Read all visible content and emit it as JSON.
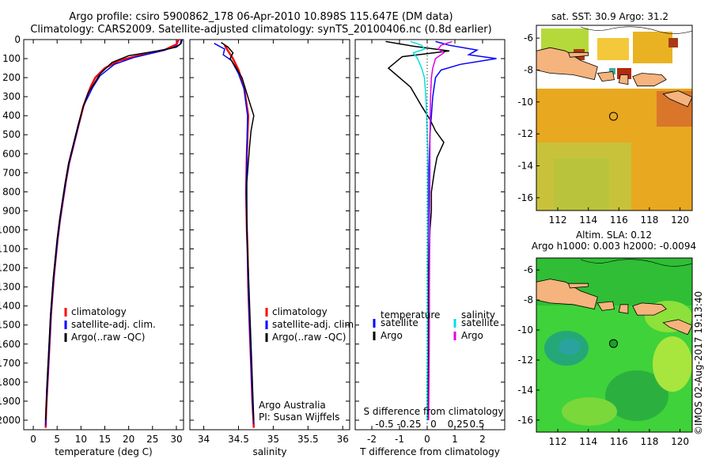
{
  "header": {
    "line1": "Argo profile: csiro 5900862_178 06-Apr-2010 10.898S 115.647E (DM data)",
    "line2": "Climatology: CARS2009. Satellite-adjusted climatology: synTS_20100406.nc (0.8d earlier)"
  },
  "colors": {
    "climatology": "#ff0000",
    "satellite": "#0000ff",
    "argo": "#000000",
    "sat_salinity": "#00e0e0",
    "argo_salinity": "#e000e0"
  },
  "chart_data": [
    {
      "type": "line",
      "id": "temperature",
      "xlabel": "temperature (deg C)",
      "ylabel": "",
      "xlim": [
        -2,
        31.5
      ],
      "ylim": [
        2050,
        0
      ],
      "xticks": [
        "0",
        "5",
        "10",
        "15",
        "20",
        "25",
        "30"
      ],
      "yticks": [
        "0",
        "100",
        "200",
        "300",
        "400",
        "500",
        "600",
        "700",
        "800",
        "900",
        "1000",
        "1100",
        "1200",
        "1300",
        "1400",
        "1500",
        "1600",
        "1700",
        "1800",
        "1900",
        "2000"
      ],
      "legend": [
        "climatology",
        "satellite-adj. clim.",
        "Argo(..raw -QC)"
      ],
      "series": [
        {
          "name": "climatology",
          "points": [
            [
              30.5,
              0
            ],
            [
              30,
              25
            ],
            [
              27.5,
              55
            ],
            [
              22,
              85
            ],
            [
              18,
              110
            ],
            [
              15,
              150
            ],
            [
              13,
              200
            ],
            [
              12,
              250
            ],
            [
              10.5,
              350
            ],
            [
              9.5,
              450
            ],
            [
              8.5,
              550
            ],
            [
              7.5,
              650
            ],
            [
              6.8,
              750
            ],
            [
              6.2,
              850
            ],
            [
              5.6,
              950
            ],
            [
              5.1,
              1050
            ],
            [
              4.7,
              1150
            ],
            [
              4.3,
              1250
            ],
            [
              4,
              1350
            ],
            [
              3.7,
              1450
            ],
            [
              3.5,
              1550
            ],
            [
              3.3,
              1650
            ],
            [
              3.1,
              1750
            ],
            [
              2.9,
              1850
            ],
            [
              2.7,
              1950
            ],
            [
              2.6,
              2040
            ]
          ]
        },
        {
          "name": "satellite-adj. clim.",
          "points": [
            [
              31,
              0
            ],
            [
              30.8,
              25
            ],
            [
              29,
              45
            ],
            [
              26,
              65
            ],
            [
              21,
              95
            ],
            [
              17,
              130
            ],
            [
              14,
              190
            ],
            [
              12.5,
              250
            ],
            [
              10.5,
              350
            ],
            [
              9.5,
              450
            ],
            [
              8.5,
              550
            ],
            [
              7.5,
              650
            ],
            [
              6.8,
              750
            ],
            [
              6.2,
              850
            ],
            [
              5.6,
              950
            ],
            [
              5.1,
              1050
            ],
            [
              4.7,
              1150
            ],
            [
              4.3,
              1250
            ],
            [
              4,
              1350
            ],
            [
              3.7,
              1450
            ],
            [
              3.5,
              1550
            ],
            [
              3.3,
              1650
            ],
            [
              3.1,
              1750
            ],
            [
              2.9,
              1850
            ],
            [
              2.7,
              1950
            ],
            [
              2.6,
              2030
            ]
          ]
        },
        {
          "name": "Argo(..raw -QC)",
          "points": [
            [
              31.2,
              0
            ],
            [
              31,
              20
            ],
            [
              30,
              40
            ],
            [
              26,
              60
            ],
            [
              20,
              85
            ],
            [
              16.5,
              120
            ],
            [
              14,
              180
            ],
            [
              12.8,
              230
            ],
            [
              11.5,
              280
            ],
            [
              10.5,
              350
            ],
            [
              9.4,
              450
            ],
            [
              8.4,
              550
            ],
            [
              7.4,
              650
            ],
            [
              6.7,
              750
            ],
            [
              6.1,
              850
            ],
            [
              5.5,
              950
            ],
            [
              5,
              1050
            ],
            [
              4.6,
              1150
            ],
            [
              4.2,
              1250
            ],
            [
              3.9,
              1350
            ],
            [
              3.6,
              1450
            ],
            [
              3.4,
              1550
            ],
            [
              3.2,
              1650
            ],
            [
              3,
              1750
            ],
            [
              2.8,
              1850
            ],
            [
              2.7,
              1950
            ],
            [
              2.6,
              2000
            ]
          ]
        }
      ]
    },
    {
      "type": "line",
      "id": "salinity",
      "xlabel": "salinity",
      "xlim": [
        33.8,
        36.1
      ],
      "ylim": [
        2050,
        0
      ],
      "xticks": [
        "34",
        "34.5",
        "35",
        "35.5",
        "36"
      ],
      "legend": [
        "climatology",
        "satellite-adj. clim.",
        "Argo(..raw -QC)"
      ],
      "annotation": [
        "Argo Australia",
        "PI: Susan Wijffels"
      ],
      "series": [
        {
          "name": "climatology",
          "points": [
            [
              34.3,
              30
            ],
            [
              34.35,
              60
            ],
            [
              34.42,
              100
            ],
            [
              34.5,
              160
            ],
            [
              34.58,
              250
            ],
            [
              34.64,
              400
            ],
            [
              34.62,
              600
            ],
            [
              34.61,
              800
            ],
            [
              34.62,
              1000
            ],
            [
              34.63,
              1100
            ],
            [
              34.64,
              1300
            ],
            [
              34.66,
              1500
            ],
            [
              34.68,
              1700
            ],
            [
              34.7,
              1900
            ],
            [
              34.72,
              2040
            ]
          ]
        },
        {
          "name": "satellite-adj. clim.",
          "points": [
            [
              34.15,
              20
            ],
            [
              34.3,
              50
            ],
            [
              34.28,
              80
            ],
            [
              34.4,
              110
            ],
            [
              34.5,
              180
            ],
            [
              34.58,
              260
            ],
            [
              34.63,
              400
            ],
            [
              34.62,
              600
            ],
            [
              34.61,
              800
            ],
            [
              34.62,
              1000
            ],
            [
              34.64,
              1300
            ],
            [
              34.66,
              1500
            ],
            [
              34.68,
              1700
            ],
            [
              34.7,
              1900
            ],
            [
              34.72,
              2020
            ]
          ]
        },
        {
          "name": "Argo(..raw -QC)",
          "points": [
            [
              34.25,
              15
            ],
            [
              34.35,
              40
            ],
            [
              34.42,
              70
            ],
            [
              34.38,
              100
            ],
            [
              34.45,
              140
            ],
            [
              34.55,
              200
            ],
            [
              34.6,
              260
            ],
            [
              34.66,
              330
            ],
            [
              34.72,
              400
            ],
            [
              34.68,
              480
            ],
            [
              34.66,
              560
            ],
            [
              34.64,
              650
            ],
            [
              34.62,
              750
            ],
            [
              34.62,
              850
            ],
            [
              34.62,
              950
            ],
            [
              34.63,
              1100
            ],
            [
              34.65,
              1300
            ],
            [
              34.67,
              1500
            ],
            [
              34.69,
              1700
            ],
            [
              34.71,
              1900
            ],
            [
              34.72,
              2000
            ]
          ]
        }
      ]
    },
    {
      "type": "line",
      "id": "difference",
      "xlabel_top": "S difference from climatology",
      "xlabel": "T difference from climatology",
      "xlim": [
        -2.6,
        2.8
      ],
      "ylim": [
        2050,
        0
      ],
      "xticks": [
        "-2",
        "-1",
        "0",
        "1",
        "2"
      ],
      "sticks_label": [
        "-0.5",
        "-0.25",
        "0",
        "0.25",
        "0.5"
      ],
      "legend_title": [
        "temperature",
        "salinity"
      ],
      "legend": [
        "satellite",
        "Argo",
        "satellite",
        "Argo"
      ],
      "series": [
        {
          "name": "temperature satellite",
          "points": [
            [
              0.3,
              10
            ],
            [
              0.8,
              30
            ],
            [
              1.8,
              55
            ],
            [
              1.5,
              80
            ],
            [
              2.5,
              100
            ],
            [
              1.2,
              130
            ],
            [
              0.5,
              160
            ],
            [
              0.3,
              200
            ],
            [
              0.2,
              300
            ],
            [
              0.15,
              400
            ],
            [
              0.1,
              500
            ],
            [
              0.08,
              600
            ],
            [
              0.06,
              700
            ],
            [
              0.05,
              800
            ],
            [
              0.04,
              1000
            ],
            [
              0.03,
              1200
            ],
            [
              0.02,
              1400
            ],
            [
              0.02,
              1600
            ],
            [
              0.01,
              1800
            ],
            [
              0.01,
              2000
            ]
          ]
        },
        {
          "name": "temperature Argo",
          "points": [
            [
              -1.5,
              10
            ],
            [
              -0.5,
              35
            ],
            [
              0.8,
              60
            ],
            [
              -0.9,
              90
            ],
            [
              -1.4,
              150
            ],
            [
              -0.6,
              250
            ],
            [
              -0.2,
              350
            ],
            [
              0.1,
              420
            ],
            [
              0.3,
              480
            ],
            [
              0.6,
              540
            ],
            [
              0.35,
              620
            ],
            [
              0.25,
              700
            ],
            [
              0.15,
              800
            ],
            [
              0.15,
              900
            ],
            [
              0.1,
              1000
            ],
            [
              0.08,
              1100
            ],
            [
              0.06,
              1200
            ],
            [
              0.05,
              1400
            ],
            [
              0.04,
              1600
            ],
            [
              0.03,
              1800
            ],
            [
              0.02,
              2000
            ]
          ]
        },
        {
          "name": "salinity satellite",
          "points": [
            [
              -0.6,
              10
            ],
            [
              -0.2,
              30
            ],
            [
              -0.1,
              50
            ],
            [
              -0.5,
              70
            ],
            [
              -0.35,
              100
            ],
            [
              -0.2,
              150
            ],
            [
              -0.1,
              200
            ],
            [
              -0.05,
              300
            ],
            [
              -0.02,
              400
            ],
            [
              0,
              500
            ],
            [
              0.02,
              600
            ],
            [
              0.02,
              800
            ],
            [
              0.02,
              1000
            ],
            [
              0.01,
              1200
            ],
            [
              0.01,
              1400
            ],
            [
              0.01,
              1600
            ],
            [
              0,
              1800
            ],
            [
              0,
              2000
            ]
          ]
        },
        {
          "name": "salinity Argo",
          "points": [
            [
              0.9,
              10
            ],
            [
              0.5,
              30
            ],
            [
              0.4,
              50
            ],
            [
              0.6,
              70
            ],
            [
              0.3,
              100
            ],
            [
              0.2,
              150
            ],
            [
              0.15,
              200
            ],
            [
              0.12,
              300
            ],
            [
              0.1,
              500
            ],
            [
              0.1,
              700
            ],
            [
              0.09,
              900
            ],
            [
              0.09,
              1100
            ],
            [
              0.08,
              1300
            ],
            [
              0.08,
              1500
            ],
            [
              0.07,
              1700
            ],
            [
              0.06,
              1900
            ],
            [
              0.05,
              2000
            ]
          ]
        }
      ]
    },
    {
      "type": "heatmap",
      "id": "sst_map",
      "title": "sat. SST: 30.9  Argo: 31.2",
      "xlim": [
        110.6,
        120.8
      ],
      "ylim": [
        -16.8,
        -5.2
      ],
      "xticks": [
        "112",
        "114",
        "116",
        "118",
        "120"
      ],
      "yticks": [
        "-6",
        "-8",
        "-10",
        "-12",
        "-14",
        "-16"
      ],
      "marker": [
        115.647,
        -10.898
      ]
    },
    {
      "type": "heatmap",
      "id": "sla_map",
      "title_lines": [
        "Altim. SLA: 0.12",
        "Argo h1000: 0.003 h2000: -0.0094"
      ],
      "xlim": [
        110.6,
        120.8
      ],
      "ylim": [
        -16.8,
        -5.2
      ],
      "xticks": [
        "112",
        "114",
        "116",
        "118",
        "120"
      ],
      "yticks": [
        "-6",
        "-8",
        "-10",
        "-12",
        "-14",
        "-16"
      ],
      "marker": [
        115.647,
        -10.898
      ]
    }
  ],
  "footer": {
    "credit": "©IMOS 02-Aug-2017 19:13:40"
  }
}
